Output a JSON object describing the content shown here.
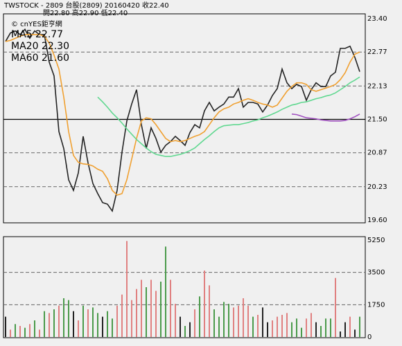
{
  "header": {
    "line1": "TWSTOCK  - 2809  台股(2809) 20160420  收22.40",
    "line2": "開22.80   高22.90   低22.40"
  },
  "chart_data": [
    {
      "type": "line",
      "annotation": "© cnYES鉅亨網",
      "ylim": [
        19.6,
        23.4
      ],
      "yticks": [
        {
          "value": 23.4,
          "label": "23.40"
        },
        22.77,
        22.13,
        {
          "value": 21.5,
          "label": "21.50"
        },
        20.87,
        20.23,
        {
          "value": 19.6,
          "label": "19.60"
        }
      ],
      "grid_styles": [
        "none",
        "dashed",
        "dashed",
        "solid",
        "dashed",
        "dashed",
        "none"
      ],
      "series": [
        {
          "name": "Close",
          "color": "#222222",
          "legend": false,
          "values": [
            22.97,
            23.13,
            23.17,
            23.1,
            23.2,
            23.03,
            23.17,
            23.1,
            23.1,
            22.58,
            22.32,
            21.27,
            20.95,
            20.36,
            20.16,
            20.49,
            21.18,
            20.68,
            20.29,
            20.1,
            19.93,
            19.9,
            19.77,
            20.16,
            20.88,
            21.47,
            21.79,
            22.06,
            21.4,
            20.95,
            21.34,
            21.14,
            20.88,
            21.01,
            21.08,
            21.18,
            21.1,
            21.01,
            21.25,
            21.4,
            21.34,
            21.66,
            21.82,
            21.66,
            21.73,
            21.79,
            21.92,
            21.92,
            22.08,
            21.73,
            21.82,
            21.82,
            21.79,
            21.64,
            21.77,
            21.95,
            22.08,
            22.45,
            22.19,
            22.08,
            22.16,
            22.12,
            21.86,
            22.06,
            22.19,
            22.12,
            22.12,
            22.32,
            22.39,
            22.84,
            22.84,
            22.88,
            22.67,
            22.4
          ]
        },
        {
          "name": "MA5 22.77",
          "color": "#f0a030",
          "legend": true,
          "values": [
            22.97,
            22.99,
            23.03,
            23.07,
            23.1,
            23.1,
            23.1,
            23.1,
            23.07,
            22.94,
            22.71,
            22.45,
            21.92,
            21.27,
            20.82,
            20.69,
            20.66,
            20.65,
            20.62,
            20.56,
            20.52,
            20.38,
            20.16,
            20.07,
            20.1,
            20.36,
            20.75,
            21.14,
            21.47,
            21.53,
            21.51,
            21.4,
            21.27,
            21.14,
            21.08,
            21.1,
            21.08,
            21.1,
            21.14,
            21.18,
            21.21,
            21.27,
            21.4,
            21.53,
            21.64,
            21.7,
            21.73,
            21.79,
            21.82,
            21.86,
            21.89,
            21.86,
            21.82,
            21.79,
            21.77,
            21.73,
            21.77,
            21.9,
            22.03,
            22.12,
            22.19,
            22.19,
            22.16,
            22.06,
            22.03,
            22.06,
            22.09,
            22.12,
            22.16,
            22.25,
            22.38,
            22.58,
            22.73,
            22.77
          ]
        },
        {
          "name": "MA20 22.30",
          "color": "#60d890",
          "legend": true,
          "values": [
            null,
            null,
            null,
            null,
            null,
            null,
            null,
            null,
            null,
            null,
            null,
            null,
            null,
            null,
            null,
            null,
            null,
            null,
            null,
            21.92,
            21.83,
            21.73,
            21.62,
            21.53,
            21.43,
            21.32,
            21.22,
            21.12,
            21.04,
            20.96,
            20.89,
            20.84,
            20.82,
            20.8,
            20.8,
            20.82,
            20.84,
            20.87,
            20.91,
            20.96,
            21.04,
            21.12,
            21.19,
            21.27,
            21.34,
            21.38,
            21.39,
            21.4,
            21.4,
            21.42,
            21.44,
            21.47,
            21.49,
            21.53,
            21.56,
            21.6,
            21.64,
            21.69,
            21.73,
            21.77,
            21.79,
            21.82,
            21.83,
            21.86,
            21.89,
            21.91,
            21.94,
            21.96,
            22.0,
            22.06,
            22.12,
            22.19,
            22.24,
            22.3
          ]
        },
        {
          "name": "MA60 21.60",
          "color": "#a050c0",
          "legend": true,
          "values": [
            null,
            null,
            null,
            null,
            null,
            null,
            null,
            null,
            null,
            null,
            null,
            null,
            null,
            null,
            null,
            null,
            null,
            null,
            null,
            null,
            null,
            null,
            null,
            null,
            null,
            null,
            null,
            null,
            null,
            null,
            null,
            null,
            null,
            null,
            null,
            null,
            null,
            null,
            null,
            null,
            null,
            null,
            null,
            null,
            null,
            null,
            null,
            null,
            null,
            null,
            null,
            null,
            null,
            null,
            null,
            null,
            null,
            null,
            null,
            21.6,
            21.59,
            21.56,
            21.53,
            21.52,
            21.51,
            21.49,
            21.48,
            21.47,
            21.47,
            21.47,
            21.48,
            21.51,
            21.55,
            21.6
          ]
        }
      ]
    },
    {
      "type": "bar",
      "ylim": [
        0,
        5250
      ],
      "yticks": [
        5250,
        3500,
        1750,
        0
      ],
      "grid_styles": [
        "none",
        "dashed",
        "dashed",
        "none"
      ],
      "values": [
        1100,
        400,
        700,
        600,
        500,
        700,
        900,
        400,
        1400,
        1300,
        1500,
        1700,
        2100,
        2000,
        1400,
        900,
        1700,
        1500,
        1600,
        1300,
        1100,
        1400,
        1000,
        1700,
        2300,
        5200,
        2000,
        2600,
        3100,
        2700,
        3100,
        2500,
        3000,
        4900,
        3100,
        1800,
        1100,
        600,
        800,
        1500,
        2200,
        3600,
        2800,
        1500,
        1100,
        1900,
        1800,
        1600,
        1700,
        2100,
        1700,
        1100,
        1200,
        1600,
        800,
        900,
        1100,
        1200,
        1300,
        800,
        1000,
        500,
        1000,
        1300,
        800,
        600,
        1000,
        1000,
        3200,
        300,
        800,
        1100,
        400,
        1100
      ],
      "colors": [
        "#222222",
        "#e08080",
        "#4a9a4a",
        "#e08080",
        "#4a9a4a",
        "#e08080",
        "#4a9a4a",
        "#e08080",
        "#4a9a4a",
        "#e08080",
        "#4a9a4a",
        "#e08080",
        "#4a9a4a",
        "#4a9a4a",
        "#222222",
        "#e08080",
        "#4a9a4a",
        "#e08080",
        "#4a9a4a",
        "#4a9a4a",
        "#222222",
        "#4a9a4a",
        "#4a9a4a",
        "#e08080",
        "#e08080",
        "#e08080",
        "#e08080",
        "#e08080",
        "#e08080",
        "#4a9a4a",
        "#e08080",
        "#e08080",
        "#4a9a4a",
        "#4a9a4a",
        "#e08080",
        "#e08080",
        "#222222",
        "#4a9a4a",
        "#222222",
        "#e08080",
        "#4a9a4a",
        "#e08080",
        "#e08080",
        "#4a9a4a",
        "#4a9a4a",
        "#4a9a4a",
        "#4a9a4a",
        "#e08080",
        "#e08080",
        "#e08080",
        "#e08080",
        "#4a9a4a",
        "#e08080",
        "#222222",
        "#222222",
        "#e08080",
        "#e08080",
        "#e08080",
        "#e08080",
        "#4a9a4a",
        "#4a9a4a",
        "#4a9a4a",
        "#e08080",
        "#e08080",
        "#222222",
        "#4a9a4a",
        "#4a9a4a",
        "#4a9a4a",
        "#e08080",
        "#222222",
        "#222222",
        "#e08080",
        "#222222",
        "#4a9a4a"
      ]
    }
  ]
}
